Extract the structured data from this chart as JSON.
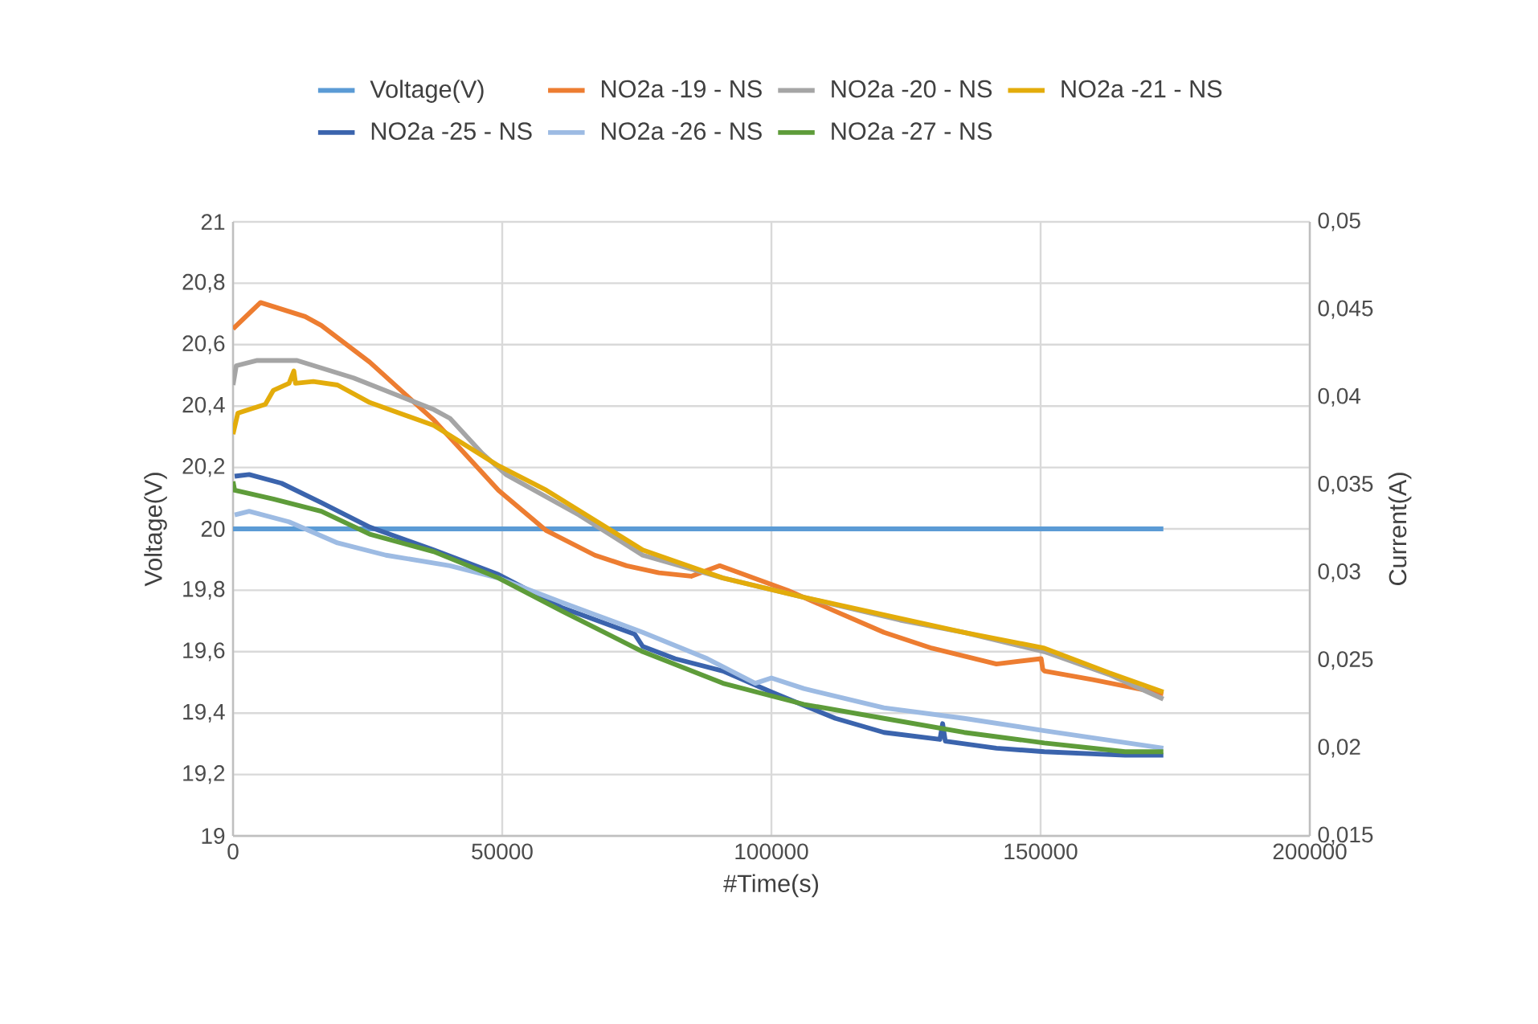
{
  "chart_data": {
    "type": "line",
    "xlabel": "#Time(s)",
    "ylabel": "Voltage(V)",
    "y2label": "Current(A)",
    "xlim": [
      0,
      200000
    ],
    "xticks": [
      0,
      50000,
      100000,
      150000,
      200000
    ],
    "ylim": [
      19,
      21
    ],
    "yticks": [
      19,
      {
        "value": 19.2,
        "label": "19,2"
      },
      {
        "value": 19.4,
        "label": "19,4"
      },
      {
        "value": 19.6,
        "label": "19,6"
      },
      {
        "value": 19.8,
        "label": "19,8"
      },
      20,
      {
        "value": 20.2,
        "label": "20,2"
      },
      {
        "value": 20.4,
        "label": "20,4"
      },
      {
        "value": 20.6,
        "label": "20,6"
      },
      {
        "value": 20.8,
        "label": "20,8"
      },
      21
    ],
    "y2lim": [
      0.015,
      0.05
    ],
    "y2ticks": [
      {
        "value": 0.015,
        "label": "0,015"
      },
      {
        "value": 0.02,
        "label": "0,02"
      },
      {
        "value": 0.025,
        "label": "0,025"
      },
      {
        "value": 0.03,
        "label": "0,03"
      },
      {
        "value": 0.035,
        "label": "0,035"
      },
      {
        "value": 0.04,
        "label": "0,04"
      },
      {
        "value": 0.045,
        "label": "0,045"
      },
      {
        "value": 0.05,
        "label": "0,05"
      }
    ],
    "grid": true,
    "legend": "top",
    "marker": "none",
    "series": [
      {
        "name": "Voltage(V)",
        "color": "#5b9bd5",
        "x": [
          0,
          172800
        ],
        "values": [
          20,
          20
        ]
      },
      {
        "name": "NO2a -19 - NS",
        "color": "#ed7d31",
        "axis": "y2",
        "x": [
          0,
          5100,
          13400,
          16400,
          25400,
          37300,
          43300,
          49300,
          58200,
          67200,
          73100,
          79100,
          85100,
          90400,
          94000,
          103000,
          111900,
          120900,
          129800,
          141800,
          150100,
          150400,
          150700,
          159700,
          172800
        ],
        "values": [
          0.0439,
          0.0454,
          0.0446,
          0.0441,
          0.042,
          0.0387,
          0.0367,
          0.0347,
          0.0324,
          0.031,
          0.0304,
          0.03,
          0.0298,
          0.0304,
          0.03,
          0.029,
          0.0278,
          0.0266,
          0.0257,
          0.0248,
          0.0251,
          0.0245,
          0.0244,
          0.0239,
          0.0231
        ]
      },
      {
        "name": "NO2a -20 - NS",
        "color": "#a5a5a5",
        "axis": "y2",
        "x": [
          0,
          600,
          4500,
          11900,
          22400,
          37300,
          40300,
          46300,
          50700,
          64200,
          76100,
          91000,
          106000,
          123900,
          135800,
          150700,
          162700,
          172800
        ],
        "values": [
          0.0407,
          0.0418,
          0.0421,
          0.0421,
          0.0411,
          0.0393,
          0.0388,
          0.0368,
          0.0356,
          0.0333,
          0.031,
          0.0297,
          0.0286,
          0.0273,
          0.0266,
          0.0255,
          0.0242,
          0.0228
        ]
      },
      {
        "name": "NO2a -21 - NS",
        "color": "#e3ac0b",
        "axis": "y2",
        "x": [
          0,
          900,
          6000,
          7500,
          10400,
          11300,
          11600,
          14900,
          19400,
          25400,
          37300,
          49300,
          58200,
          76100,
          91000,
          106000,
          123900,
          135800,
          150700,
          162700,
          172800
        ],
        "values": [
          0.0379,
          0.0391,
          0.0396,
          0.0404,
          0.0408,
          0.0415,
          0.0408,
          0.0409,
          0.0407,
          0.0397,
          0.0384,
          0.0361,
          0.0347,
          0.0313,
          0.0297,
          0.0286,
          0.0274,
          0.0266,
          0.0257,
          0.0243,
          0.0232
        ]
      },
      {
        "name": "NO2a -25 - NS",
        "color": "#3b64ad",
        "axis": "y2",
        "x": [
          300,
          3000,
          9000,
          16400,
          25400,
          37300,
          49300,
          61200,
          74600,
          76100,
          82100,
          91000,
          100000,
          111900,
          120900,
          131300,
          131800,
          132300,
          141800,
          150700,
          165700,
          172800
        ],
        "values": [
          0.0355,
          0.0356,
          0.0351,
          0.034,
          0.0326,
          0.0313,
          0.0299,
          0.028,
          0.0265,
          0.0258,
          0.0251,
          0.0244,
          0.0232,
          0.0217,
          0.0209,
          0.0205,
          0.0214,
          0.0204,
          0.02,
          0.0198,
          0.0196,
          0.0196
        ]
      },
      {
        "name": "NO2a -26 - NS",
        "color": "#9dbbe3",
        "axis": "y2",
        "x": [
          300,
          3000,
          10400,
          19400,
          28400,
          40300,
          49300,
          61200,
          76100,
          88100,
          97000,
          100000,
          106000,
          120900,
          135800,
          150700,
          172800
        ],
        "values": [
          0.0333,
          0.0335,
          0.0329,
          0.0317,
          0.031,
          0.0304,
          0.0297,
          0.0283,
          0.0266,
          0.0251,
          0.0237,
          0.024,
          0.0234,
          0.0223,
          0.0217,
          0.021,
          0.02
        ]
      },
      {
        "name": "NO2a -27 - NS",
        "color": "#5e9c3a",
        "axis": "y2",
        "x": [
          0,
          300,
          7500,
          16400,
          25400,
          37300,
          49300,
          61200,
          76100,
          91000,
          106000,
          120900,
          135800,
          150700,
          165700,
          172800
        ],
        "values": [
          0.0352,
          0.0347,
          0.0342,
          0.0335,
          0.0322,
          0.0312,
          0.0297,
          0.0278,
          0.0255,
          0.0237,
          0.0225,
          0.0217,
          0.0209,
          0.0203,
          0.0198,
          0.0198
        ]
      }
    ]
  }
}
